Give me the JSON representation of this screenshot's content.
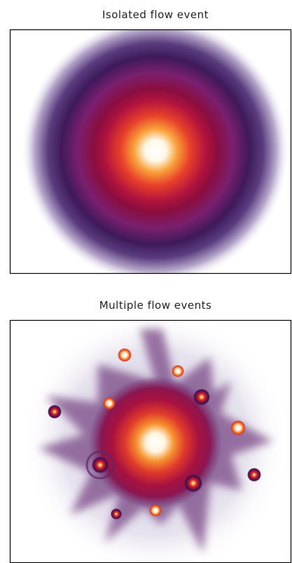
{
  "panels": [
    {
      "title": "Isolated flow event"
    },
    {
      "title": "Multiple flow events"
    }
  ]
}
